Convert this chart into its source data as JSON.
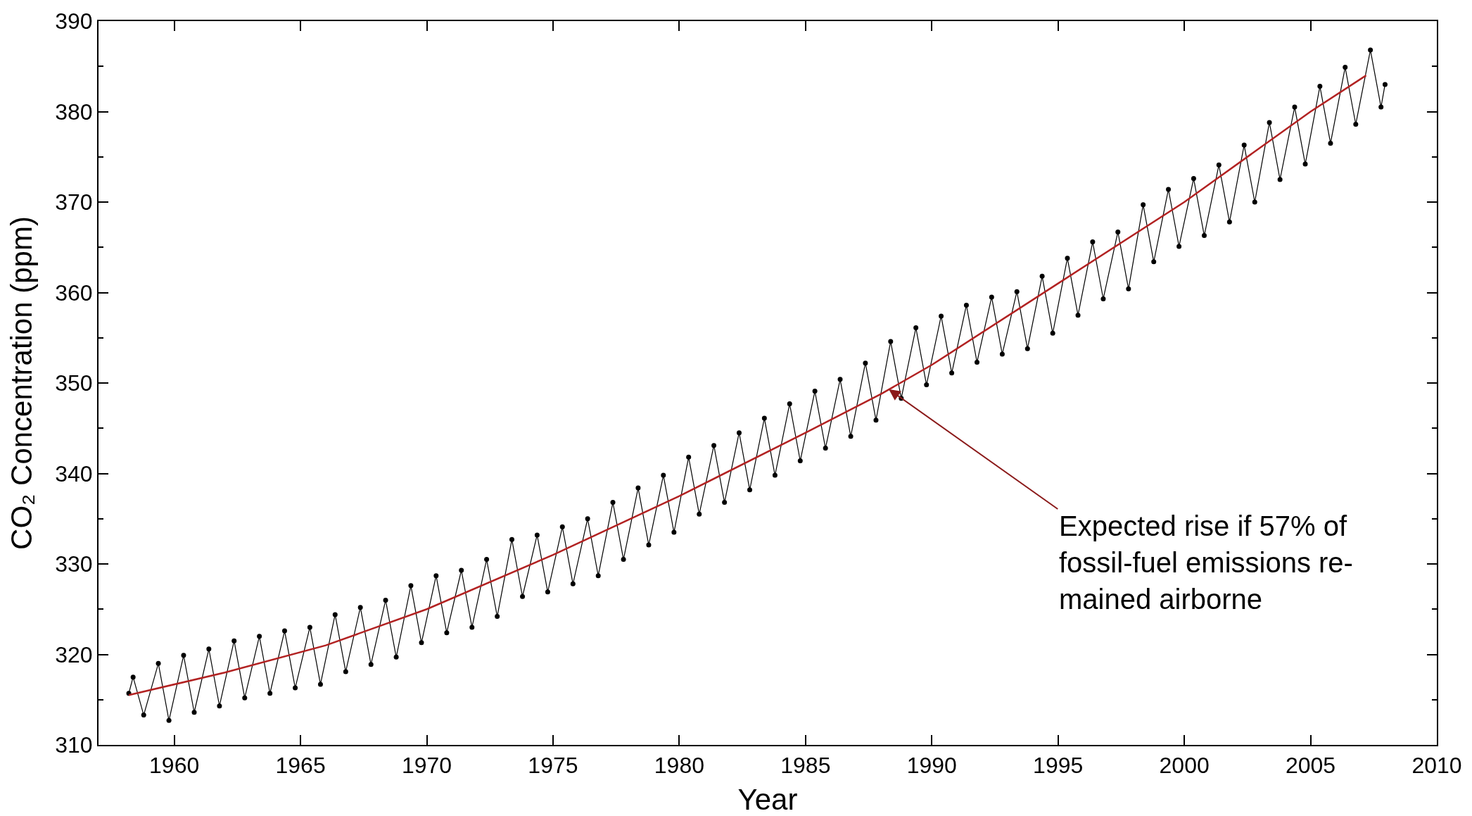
{
  "chart_data": {
    "type": "line",
    "xlabel": "Year",
    "ylabel": "CO₂ Concentration (ppm)",
    "xlim": [
      1957,
      2010
    ],
    "xticks": [
      1960,
      1965,
      1970,
      1975,
      1980,
      1985,
      1990,
      1995,
      2000,
      2005,
      2010
    ],
    "ylim": [
      310,
      390
    ],
    "yticks": [
      310,
      320,
      330,
      340,
      350,
      360,
      370,
      380,
      390
    ],
    "grid": false,
    "marker": "circle",
    "line_style": "solid",
    "series": [
      {
        "color": "#000000",
        "x": [
          1958.2,
          1958.37,
          1958.79,
          1959.37,
          1959.79,
          1960.37,
          1960.79,
          1961.37,
          1961.79,
          1962.37,
          1962.79,
          1963.37,
          1963.79,
          1964.37,
          1964.79,
          1965.37,
          1965.79,
          1966.37,
          1966.79,
          1967.37,
          1967.79,
          1968.37,
          1968.79,
          1969.37,
          1969.79,
          1970.37,
          1970.79,
          1971.37,
          1971.79,
          1972.37,
          1972.79,
          1973.37,
          1973.79,
          1974.37,
          1974.79,
          1975.37,
          1975.79,
          1976.37,
          1976.79,
          1977.37,
          1977.79,
          1978.37,
          1978.79,
          1979.37,
          1979.79,
          1980.37,
          1980.79,
          1981.37,
          1981.79,
          1982.37,
          1982.79,
          1983.37,
          1983.79,
          1984.37,
          1984.79,
          1985.37,
          1985.79,
          1986.37,
          1986.79,
          1987.37,
          1987.79,
          1988.37,
          1988.79,
          1989.37,
          1989.79,
          1990.37,
          1990.79,
          1991.37,
          1991.79,
          1992.37,
          1992.79,
          1993.37,
          1993.79,
          1994.37,
          1994.79,
          1995.37,
          1995.79,
          1996.37,
          1996.79,
          1997.37,
          1997.79,
          1998.37,
          1998.79,
          1999.37,
          1999.79,
          2000.37,
          2000.79,
          2001.37,
          2001.79,
          2002.37,
          2002.79,
          2003.37,
          2003.79,
          2004.37,
          2004.79,
          2005.37,
          2005.79,
          2006.37,
          2006.79,
          2007.37,
          2007.79,
          2007.95
        ],
        "values": [
          315.7,
          317.5,
          313.3,
          319.0,
          312.7,
          319.9,
          313.6,
          320.6,
          314.3,
          321.5,
          315.2,
          322.0,
          315.7,
          322.6,
          316.3,
          323.0,
          316.7,
          324.4,
          318.1,
          325.2,
          318.9,
          326.0,
          319.7,
          327.6,
          321.3,
          328.7,
          322.4,
          329.3,
          323.0,
          330.5,
          324.2,
          332.7,
          326.4,
          333.2,
          326.9,
          334.1,
          327.8,
          335.0,
          328.7,
          336.8,
          330.5,
          338.4,
          332.1,
          339.8,
          333.5,
          341.8,
          335.5,
          343.1,
          336.8,
          344.5,
          338.2,
          346.1,
          339.8,
          347.7,
          341.4,
          349.1,
          342.8,
          350.4,
          344.1,
          352.2,
          345.9,
          354.6,
          348.3,
          356.1,
          349.8,
          357.4,
          351.1,
          358.6,
          352.3,
          359.5,
          353.2,
          360.1,
          353.8,
          361.8,
          355.5,
          363.8,
          357.5,
          365.6,
          359.3,
          366.7,
          360.4,
          369.7,
          363.4,
          371.4,
          365.1,
          372.6,
          366.3,
          374.1,
          367.8,
          376.3,
          370.0,
          378.8,
          372.5,
          380.5,
          374.2,
          382.8,
          376.5,
          384.9,
          378.6,
          386.8,
          380.5,
          383.0
        ]
      },
      {
        "color": "#b22222",
        "marker": "none",
        "x": [
          1958.2,
          1962,
          1966,
          1970,
          1975,
          1980,
          1985,
          1988,
          1990,
          1995,
          2000,
          2005,
          2007.2
        ],
        "values": [
          315.5,
          318,
          321,
          325,
          331,
          337.5,
          344.5,
          348.8,
          352,
          361,
          370,
          380,
          384
        ]
      }
    ],
    "annotations": [
      {
        "text": "Expected rise if 57% of\nfossil-fuel emissions re-\nmained airborne",
        "x": 1988.3,
        "y": 349.3
      }
    ]
  }
}
